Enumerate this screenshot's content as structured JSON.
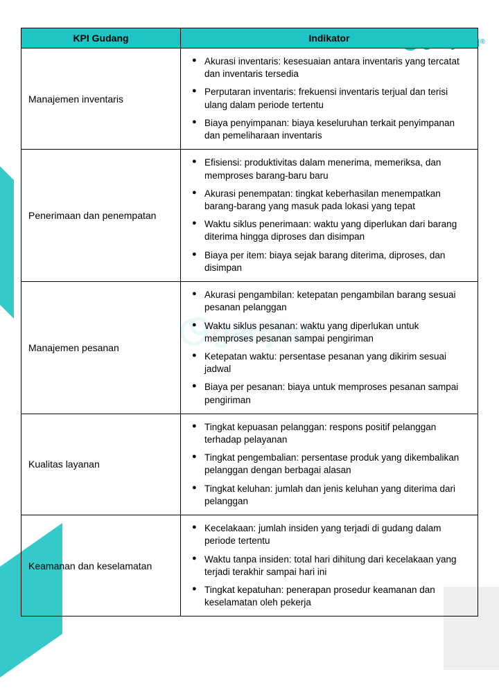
{
  "brand": {
    "name": "gaojian",
    "trademark": "®"
  },
  "header": {
    "col1": "KPI Gudang",
    "col2": "Indikator"
  },
  "rows": [
    {
      "category": "Manajemen inventaris",
      "indicators": [
        "Akurasi inventaris: kesesuaian antara inventaris yang tercatat dan inventaris tersedia",
        "Perputaran inventaris: frekuensi inventaris terjual dan terisi ulang dalam periode tertentu",
        "Biaya penyimpanan: biaya keseluruhan terkait penyimpanan dan pemeliharaan inventaris"
      ]
    },
    {
      "category": "Penerimaan dan penempatan",
      "indicators": [
        "Efisiensi: produktivitas dalam menerima, memeriksa, dan memproses barang-baru baru",
        "Akurasi penempatan: tingkat keberhasilan menempatkan barang-barang yang masuk pada lokasi yang tepat",
        "Waktu siklus penerimaan: waktu yang diperlukan dari barang diterima hingga diproses dan disimpan",
        "Biaya per item: biaya sejak barang diterima, diproses, dan disimpan"
      ]
    },
    {
      "category": "Manajemen pesanan",
      "indicators": [
        "Akurasi pengambilan: ketepatan pengambilan barang sesuai pesanan pelanggan",
        "Waktu siklus pesanan: waktu yang diperlukan untuk memproses pesanan sampai pengiriman",
        "Ketepatan waktu: persentase pesanan yang dikirim sesuai jadwal",
        "Biaya per pesanan: biaya untuk memproses pesanan sampai pengiriman"
      ]
    },
    {
      "category": "Kualitas layanan",
      "indicators": [
        "Tingkat kepuasan pelanggan: respons positif pelanggan terhadap pelayanan",
        "Tingkat pengembalian: persentase produk yang dikembalikan pelanggan dengan berbagai alasan",
        "Tingkat keluhan: jumlah dan jenis keluhan yang diterima dari pelanggan"
      ]
    },
    {
      "category": "Keamanan dan keselamatan",
      "indicators": [
        "Kecelakaan: jumlah insiden yang terjadi di gudang dalam periode tertentu",
        "Waktu tanpa insiden: total hari dihitung dari kecelakaan yang terjadi terakhir sampai hari ini",
        "Tingkat kepatuhan: penerapan prosedur keamanan dan keselamatan oleh pekerja"
      ]
    }
  ],
  "colors": {
    "header_bg": "#1fc4c4",
    "border": "#000000",
    "text": "#000000",
    "brand": "#1fc4c4"
  }
}
